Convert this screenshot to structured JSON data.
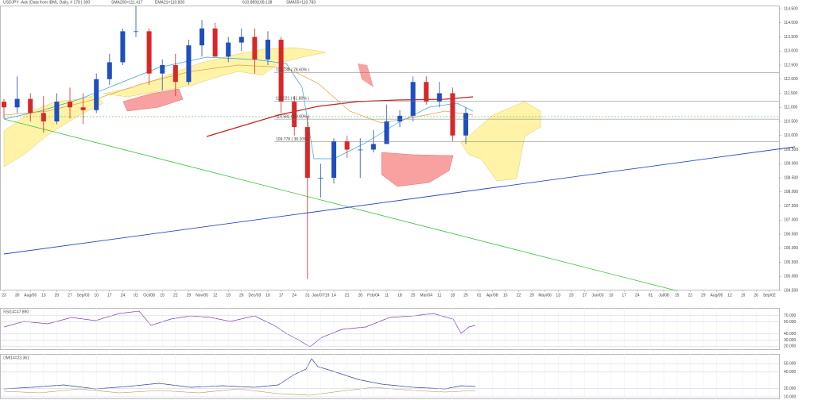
{
  "chart_data": [
    {
      "type": "candlestick",
      "title": "USDJPY -Ask (Data from IBM), Daily, # 178 | 300",
      "indicators": [
        "SMA200=111.417",
        "EMA21=110.828",
        "610.889|108.138",
        "SMA55=110.783"
      ],
      "up_color": "#1f4fbf",
      "down_color": "#d62828",
      "categories": [
        "23",
        "30",
        "Aug/06",
        "13",
        "20",
        "27",
        "Sep/03",
        "10",
        "17",
        "24",
        "01",
        "Oct/08",
        "15",
        "22",
        "29",
        "Nov/05",
        "12",
        "19",
        "26",
        "Dec/03",
        "10",
        "17",
        "24",
        "31",
        "Jan/07/19",
        "14",
        "21",
        "28",
        "Feb/04",
        "11",
        "18",
        "25",
        "Mar/04",
        "11",
        "18",
        "25",
        "01",
        "Apr/08",
        "15",
        "22",
        "29",
        "May/06",
        "13",
        "20",
        "27",
        "Jun/03",
        "10",
        "17",
        "24",
        "01",
        "Jul/08",
        "15",
        "22",
        "29",
        "Aug/05",
        "12",
        "19",
        "26",
        "Sep/02"
      ],
      "open": [
        111.2,
        111.0,
        111.3,
        110.8,
        110.5,
        111.2,
        111.0,
        110.9,
        112.0,
        112.6,
        113.7,
        113.7,
        112.2,
        112.5,
        111.9,
        113.2,
        113.8,
        112.8,
        113.3,
        113.5,
        112.7,
        113.4,
        111.2,
        110.3,
        108.5,
        108.5,
        109.8,
        109.5,
        109.5,
        109.7,
        110.5,
        110.7,
        111.9,
        111.2,
        111.5,
        110.0,
        null,
        null,
        null,
        null,
        null,
        null,
        null,
        null,
        null,
        null,
        null,
        null,
        null,
        null,
        null,
        null,
        null,
        null,
        null,
        null,
        null,
        null,
        null
      ],
      "high": [
        111.3,
        112.1,
        111.5,
        111.4,
        111.5,
        111.7,
        111.5,
        112.2,
        112.9,
        113.8,
        114.6,
        113.8,
        112.7,
        112.9,
        113.4,
        114.1,
        114.0,
        113.5,
        113.8,
        113.8,
        113.7,
        113.5,
        111.4,
        110.7,
        109.0,
        109.9,
        110.0,
        109.9,
        110.2,
        111.1,
        110.9,
        112.1,
        112.1,
        111.9,
        111.7,
        111.0,
        null,
        null,
        null,
        null,
        null,
        null,
        null,
        null,
        null,
        null,
        null,
        null,
        null,
        null,
        null,
        null,
        null,
        null,
        null,
        null,
        null,
        null,
        null
      ],
      "low": [
        110.6,
        110.8,
        110.5,
        110.1,
        110.4,
        110.6,
        110.4,
        110.8,
        111.8,
        112.5,
        113.5,
        111.8,
        111.6,
        111.4,
        111.8,
        112.8,
        112.8,
        112.6,
        113.0,
        112.2,
        112.5,
        110.8,
        110.0,
        104.9,
        107.8,
        108.3,
        109.2,
        108.5,
        109.4,
        109.8,
        110.3,
        110.5,
        111.1,
        111.0,
        109.8,
        109.7,
        null,
        null,
        null,
        null,
        null,
        null,
        null,
        null,
        null,
        null,
        null,
        null,
        null,
        null,
        null,
        null,
        null,
        null,
        null,
        null,
        null,
        null,
        null
      ],
      "close": [
        111.0,
        111.3,
        110.8,
        110.5,
        111.2,
        111.0,
        110.9,
        112.0,
        112.6,
        113.7,
        113.7,
        112.2,
        112.5,
        111.9,
        113.2,
        113.8,
        112.8,
        113.3,
        113.5,
        112.7,
        113.4,
        111.2,
        110.3,
        108.5,
        108.5,
        109.8,
        109.5,
        109.5,
        109.7,
        110.5,
        110.7,
        111.9,
        111.2,
        111.5,
        110.0,
        110.8,
        null,
        null,
        null,
        null,
        null,
        null,
        null,
        null,
        null,
        null,
        null,
        null,
        null,
        null,
        null,
        null,
        null,
        null,
        null,
        null,
        null,
        null,
        null
      ],
      "ylim": [
        104.5,
        114.5
      ],
      "yticks": [
        {
          "value": 104.5,
          "label": "104.500"
        },
        {
          "value": 105,
          "label": "105.000"
        },
        {
          "value": 105.5,
          "label": "105.500"
        },
        {
          "value": 106,
          "label": "106.000"
        },
        {
          "value": 106.5,
          "label": "106.500"
        },
        {
          "value": 107,
          "label": "107.000"
        },
        {
          "value": 107.5,
          "label": "107.500"
        },
        {
          "value": 108,
          "label": "108.000"
        },
        {
          "value": 108.5,
          "label": "108.500"
        },
        {
          "value": 109,
          "label": "109.000"
        },
        {
          "value": 109.5,
          "label": "109.500"
        },
        {
          "value": 110,
          "label": "110.000"
        },
        {
          "value": 110.5,
          "label": "110.500"
        },
        {
          "value": 111,
          "label": "111.000"
        },
        {
          "value": 111.5,
          "label": "111.500"
        },
        {
          "value": 112,
          "label": "112.000"
        },
        {
          "value": 112.5,
          "label": "112.500"
        },
        {
          "value": 113,
          "label": "113.000"
        },
        {
          "value": 113.5,
          "label": "113.500"
        },
        {
          "value": 114,
          "label": "114.000"
        },
        {
          "value": 114.5,
          "label": "114.500"
        }
      ],
      "levels": [
        {
          "value": 112.238,
          "label": "112.238 ( 78.60% )"
        },
        {
          "value": 111.221,
          "label": "111.221 ( 61.80% )"
        },
        {
          "value": 110.581,
          "label": "110.581 ( 50.00% )"
        },
        {
          "value": 109.778,
          "label": "109.778 ( 38.20% )"
        }
      ]
    },
    {
      "type": "indicator",
      "title": "RSI14=47.890",
      "ylim": [
        15,
        75
      ],
      "yticks": [
        {
          "value": 70,
          "label": "70.000"
        },
        {
          "value": 60,
          "label": "60.000"
        },
        {
          "value": 40,
          "label": "40.000"
        },
        {
          "value": 30,
          "label": "30.000"
        },
        {
          "value": 20,
          "label": "20.000"
        }
      ]
    },
    {
      "type": "indicator",
      "title": "DMI14=23.361",
      "ylim": [
        10,
        60
      ],
      "yticks": [
        {
          "value": 50,
          "label": "50.000"
        },
        {
          "value": 40,
          "label": "40.000"
        },
        {
          "value": 20,
          "label": "20.000"
        },
        {
          "value": 10,
          "label": "10.000"
        }
      ]
    }
  ]
}
